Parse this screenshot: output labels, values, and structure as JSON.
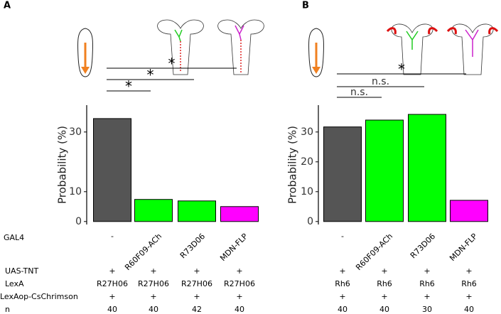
{
  "chart_data": [
    {
      "type": "bar",
      "panel": "A",
      "ylabel": "Probability (%)",
      "categories": [
        "-",
        "R60F09-ACh",
        "R73D06",
        "MDN-FLP"
      ],
      "values": [
        34.5,
        7.4,
        6.9,
        5.0
      ],
      "colors": [
        "#555555",
        "#00ff00",
        "#00ff00",
        "#ff00ff"
      ],
      "ylim": [
        -1,
        39
      ],
      "yticks": [
        0,
        10,
        30
      ],
      "annotations": [
        "*",
        "*",
        "*"
      ],
      "gal4_label": "GAL4",
      "rows": [
        {
          "label": "UAS-TNT",
          "values": [
            "+",
            "+",
            "+",
            "+"
          ]
        },
        {
          "label": "LexA",
          "values": [
            "R27H06",
            "R27H06",
            "R27H06",
            "R27H06"
          ]
        },
        {
          "label": "LexAop-CsChrimson",
          "values": [
            "+",
            "+",
            "+",
            "+"
          ]
        },
        {
          "label": "n",
          "values": [
            40,
            40,
            42,
            40
          ]
        }
      ]
    },
    {
      "type": "bar",
      "panel": "B",
      "ylabel": "Probability (%)",
      "categories": [
        "-",
        "R60F09-ACh",
        "R73D06",
        "MDN-FLP"
      ],
      "values": [
        31.7,
        34.0,
        35.9,
        7.1
      ],
      "colors": [
        "#555555",
        "#00ff00",
        "#00ff00",
        "#ff00ff"
      ],
      "ylim": [
        -1,
        39
      ],
      "yticks": [
        0,
        10,
        20,
        30
      ],
      "annotations": [
        "n.s.",
        "n.s.",
        "*"
      ],
      "rows": [
        {
          "values": [
            "+",
            "+",
            "+",
            "+"
          ]
        },
        {
          "values": [
            "Rh6",
            "Rh6",
            "Rh6",
            "Rh6"
          ]
        },
        {
          "values": [
            "+",
            "+",
            "+",
            "+"
          ]
        },
        {
          "values": [
            40,
            40,
            30,
            40
          ]
        }
      ]
    }
  ]
}
